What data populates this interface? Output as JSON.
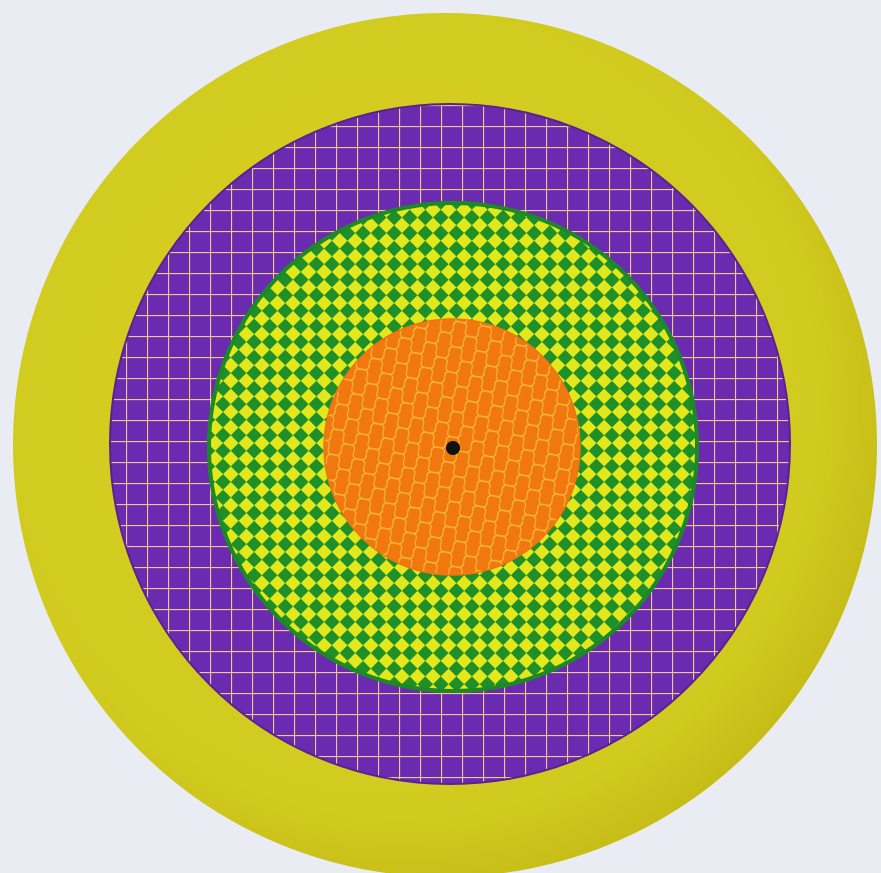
{
  "colors": {
    "background": "#e9ecf2",
    "outer_ring": "#d2cb1f",
    "outer_ring_shade": "#c2b814",
    "purple_ring": "#6a2bb0",
    "purple_grid_lines": "#f0c98a",
    "green_ring": "#1f8f2a",
    "green_checks": "#e2e81c",
    "orange_center": "#f0780f",
    "orange_pattern": "#f6b73a",
    "center_dot": "#111111"
  },
  "pattern_names": {
    "outer_ring": "solid-yellow",
    "purple_ring": "square-grid",
    "green_ring": "diamond-checker",
    "orange_center": "wave-mesh"
  }
}
